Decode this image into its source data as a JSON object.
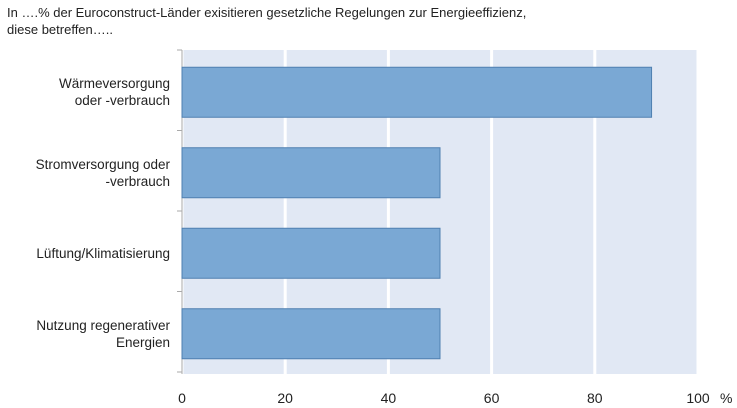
{
  "chart_data": {
    "type": "bar",
    "orientation": "horizontal",
    "title": "In ….% der Euroconstruct-Länder exisitieren gesetzliche Regelungen zur Energieeffizienz,\ndiese betreffen…..",
    "categories": [
      "Wärmeversorgung\noder -verbrauch",
      "Stromversorgung oder\n-verbrauch",
      "Lüftung/Klimatisierung",
      "Nutzung regenerativer\nEnergien"
    ],
    "values": [
      91,
      50,
      50,
      50
    ],
    "color": "#7aa8d4",
    "xlabel": "%",
    "xlim": [
      0,
      100
    ],
    "xticks": [
      0,
      20,
      40,
      60,
      80,
      100
    ],
    "grid": true
  }
}
